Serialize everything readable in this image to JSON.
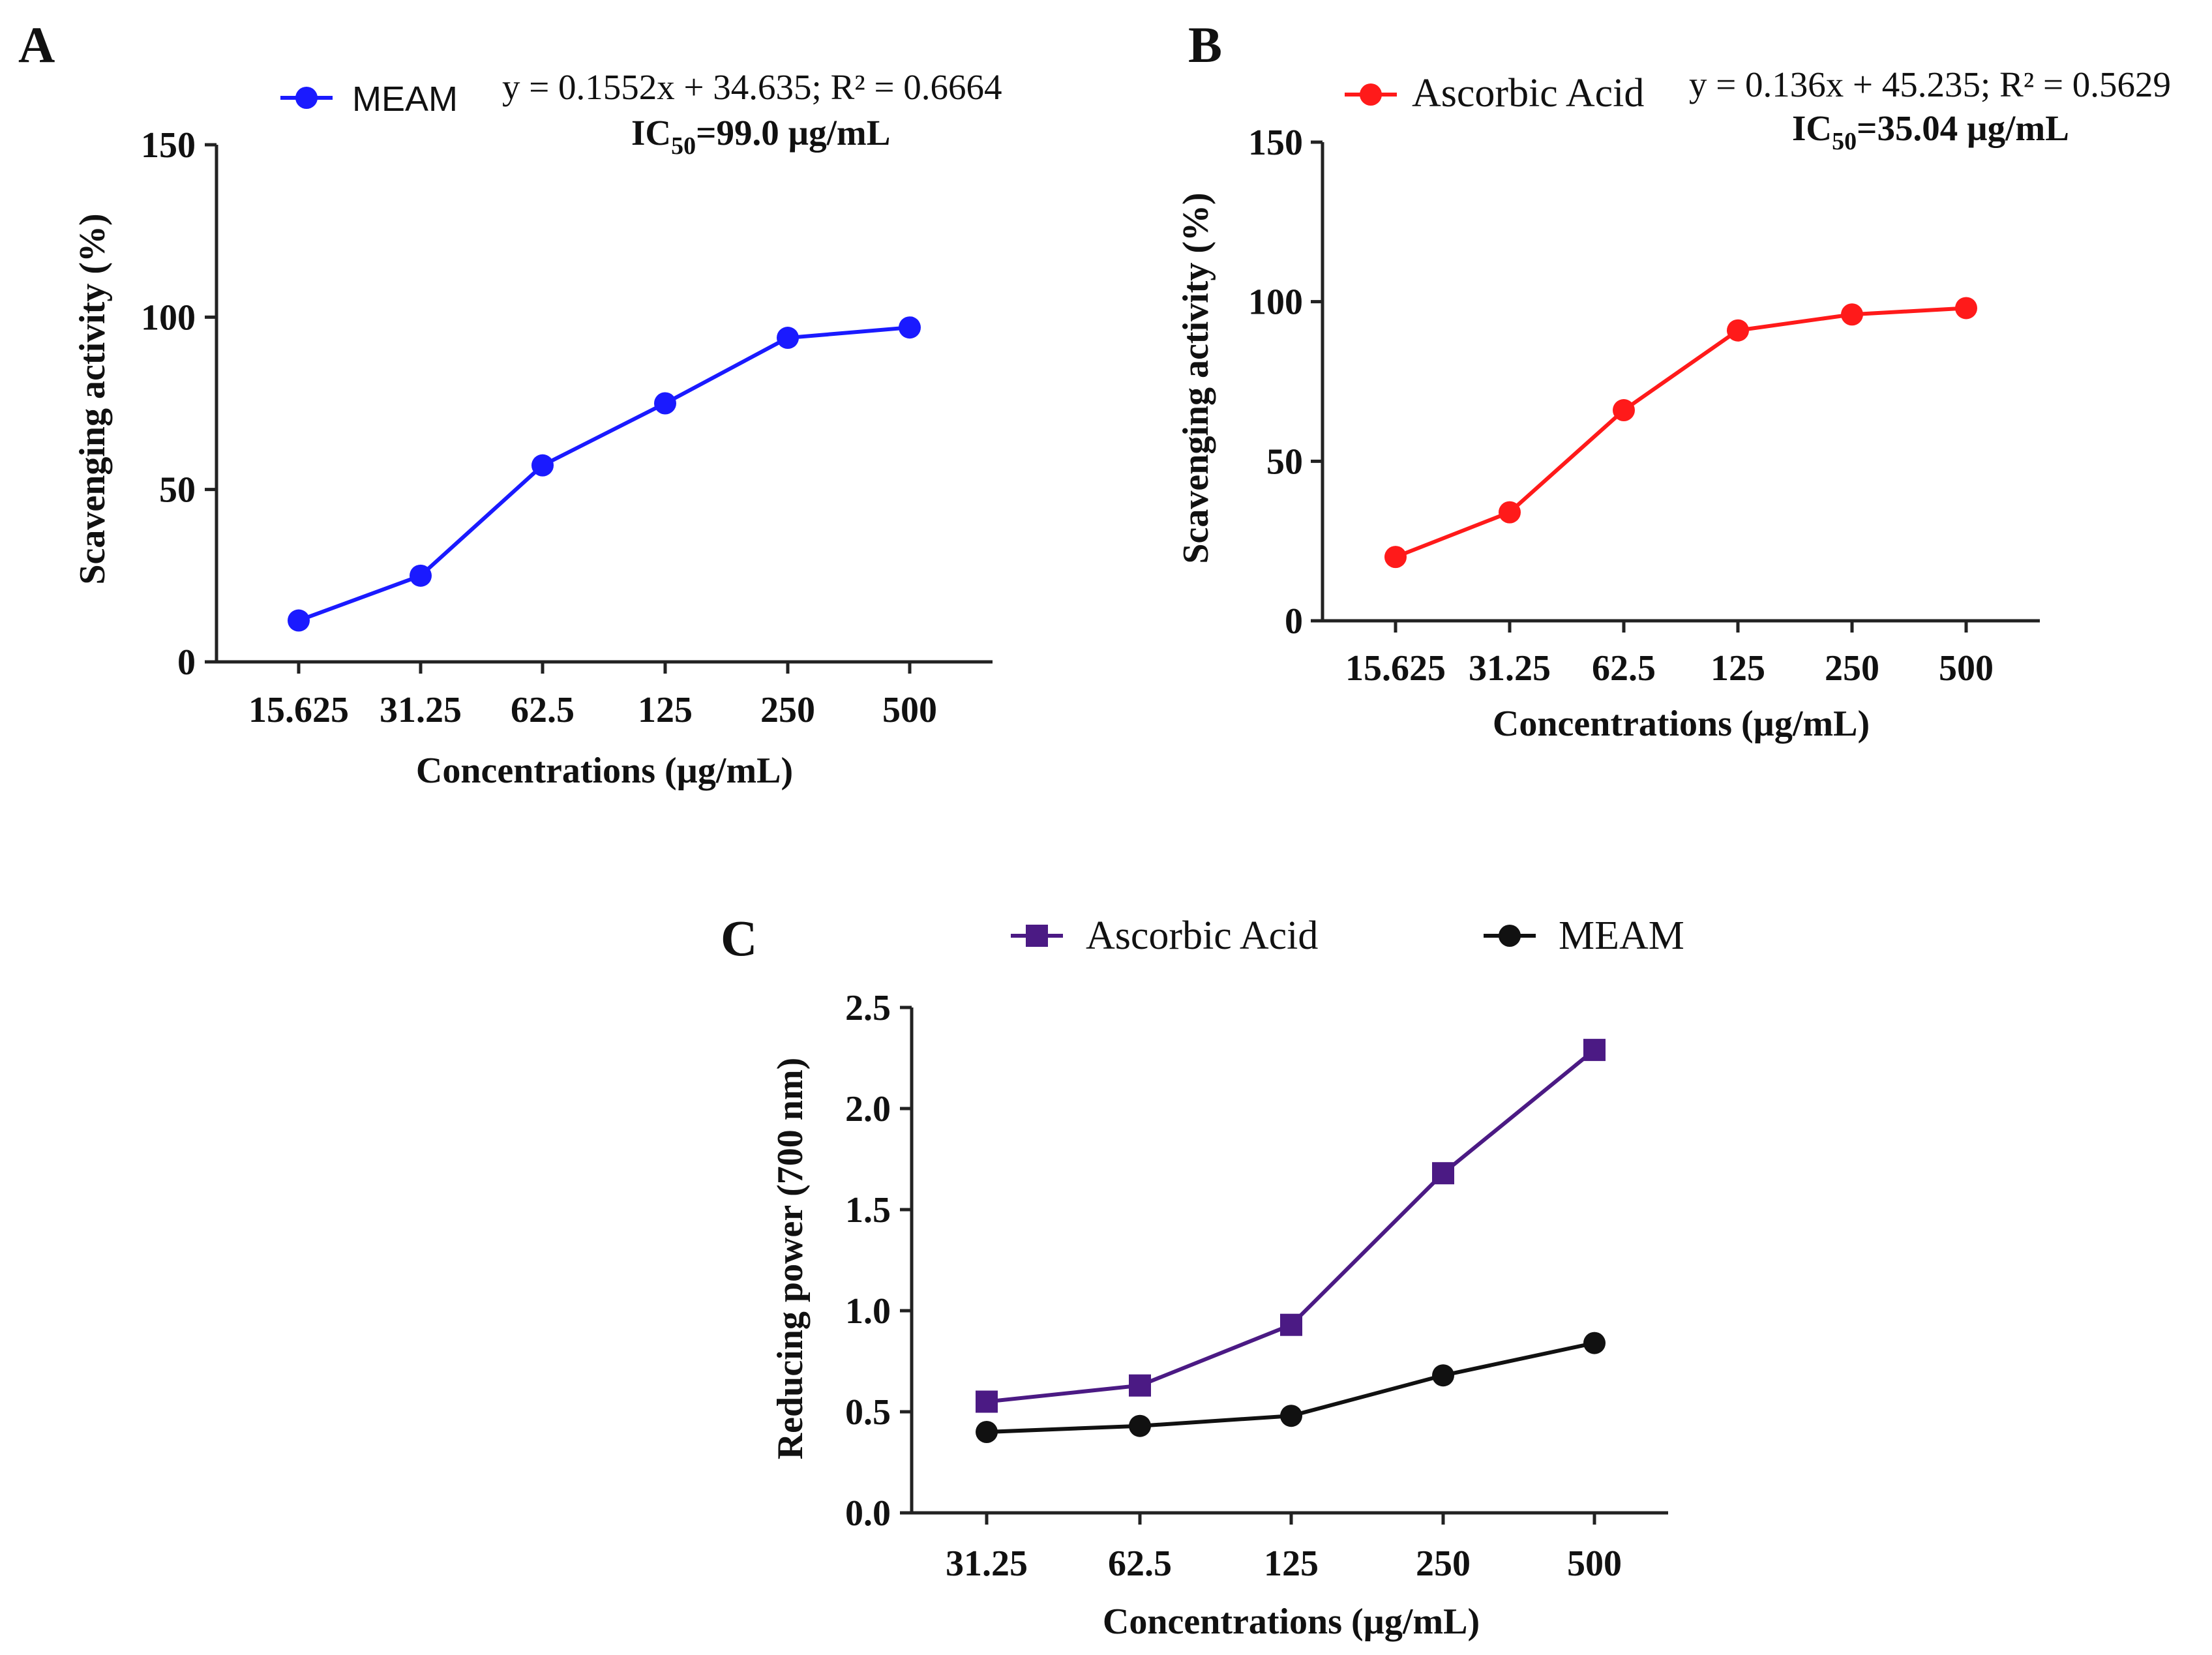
{
  "chart_data": [
    {
      "panel": "A",
      "type": "line",
      "categories": [
        "15.625",
        "31.25",
        "62.5",
        "125",
        "250",
        "500"
      ],
      "series": [
        {
          "name": "MEAM",
          "values": [
            12,
            25,
            57,
            75,
            94,
            97
          ],
          "color": "#1a1aff",
          "marker": "circle"
        }
      ],
      "equation": "y = 0.1552x + 34.635; R² = 0.6664",
      "ic50": {
        "prefix": "IC",
        "sub": "50",
        "value": "=99.0 µg/mL"
      },
      "xlabel": "Concentrations (µg/mL)",
      "ylabel": "Scavenging activity (%)",
      "ylim": [
        0,
        150
      ],
      "yticks": [
        0,
        50,
        100,
        150
      ],
      "ytick_labels": [
        "0",
        "50",
        "100",
        "150"
      ],
      "grid": false,
      "legend_position": "top"
    },
    {
      "panel": "B",
      "type": "line",
      "categories": [
        "15.625",
        "31.25",
        "62.5",
        "125",
        "250",
        "500"
      ],
      "series": [
        {
          "name": "Ascorbic Acid",
          "values": [
            20,
            34,
            66,
            91,
            96,
            98
          ],
          "color": "#ff1a1a",
          "marker": "circle"
        }
      ],
      "equation": "y = 0.136x + 45.235; R² = 0.5629",
      "ic50": {
        "prefix": "IC",
        "sub": "50",
        "value": "=35.04 µg/mL"
      },
      "xlabel": "Concentrations (µg/mL)",
      "ylabel": "Scavenging activity (%)",
      "ylim": [
        0,
        150
      ],
      "yticks": [
        0,
        50,
        100,
        150
      ],
      "ytick_labels": [
        "0",
        "50",
        "100",
        "150"
      ],
      "grid": false,
      "legend_position": "top"
    },
    {
      "panel": "C",
      "type": "line",
      "categories": [
        "31.25",
        "62.5",
        "125",
        "250",
        "500"
      ],
      "series": [
        {
          "name": "Ascorbic Acid",
          "values": [
            0.55,
            0.63,
            0.93,
            1.68,
            2.29
          ],
          "color": "#4b1a84",
          "marker": "square"
        },
        {
          "name": "MEAM",
          "values": [
            0.4,
            0.43,
            0.48,
            0.68,
            0.84
          ],
          "color": "#111111",
          "marker": "circle"
        }
      ],
      "xlabel": "Concentrations (µg/mL)",
      "ylabel": "Reducing power (700 nm)",
      "ylim": [
        0,
        2.5
      ],
      "yticks": [
        0,
        0.5,
        1.0,
        1.5,
        2.0,
        2.5
      ],
      "ytick_labels": [
        "0.0",
        "0.5",
        "1.0",
        "1.5",
        "2.0",
        "2.5"
      ],
      "grid": false,
      "legend_position": "top"
    }
  ]
}
